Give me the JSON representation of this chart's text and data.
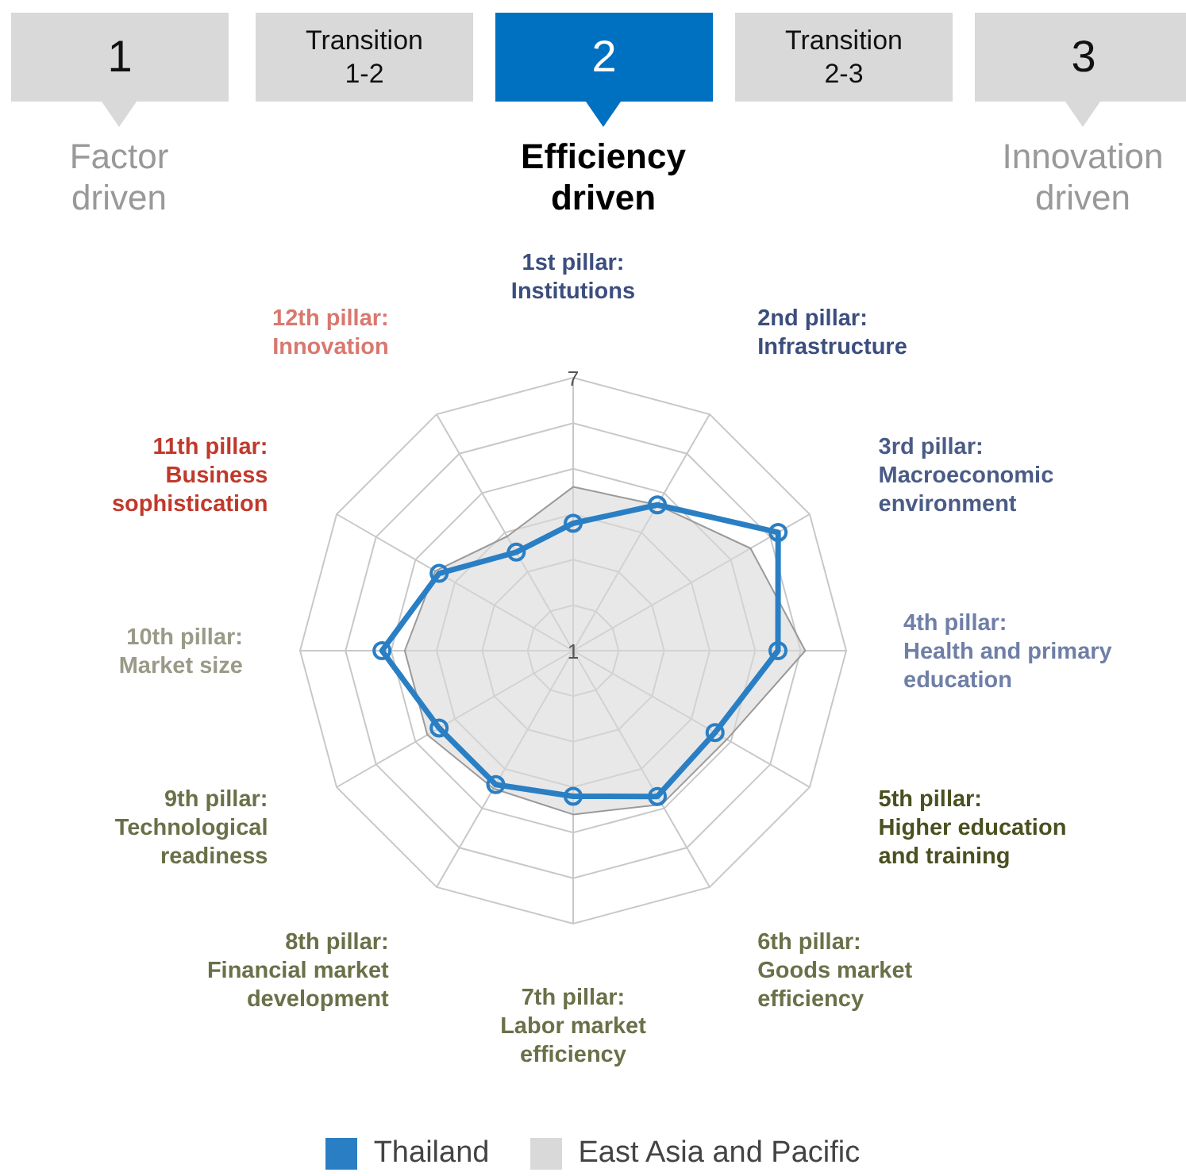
{
  "chart_data": {
    "type": "radar",
    "categories": [
      "1st pillar:\nInstitutions",
      "2nd pillar:\nInfrastructure",
      "3rd pillar:\nMacroeconomic\nenvironment",
      "4th pillar:\nHealth and primary\neducation",
      "5th pillar:\nHigher education\nand training",
      "6th pillar:\nGoods market\nefficiency",
      "7th pillar:\nLabor market\nefficiency",
      "8th pillar:\nFinancial market\ndevelopment",
      "9th pillar:\nTechnological\nreadiness",
      "10th pillar:\nMarket size",
      "11th pillar:\nBusiness\nsophistication",
      "12th pillar:\nInnovation"
    ],
    "series": [
      {
        "name": "East Asia and Pacific",
        "type": "area",
        "color": "#d9d9d9",
        "values": [
          4.6,
          4.7,
          5.5,
          6.1,
          4.9,
          4.9,
          4.6,
          4.5,
          4.7,
          4.7,
          4.5,
          3.9
        ]
      },
      {
        "name": "Thailand",
        "color": "#2a7fc4",
        "marker": "circle",
        "values": [
          3.8,
          4.7,
          6.2,
          5.5,
          4.6,
          4.7,
          4.2,
          4.4,
          4.4,
          5.2,
          4.4,
          3.5
        ]
      }
    ],
    "ylim": [
      1,
      7
    ],
    "yticks": [
      1,
      7
    ],
    "grid": true,
    "legend": "bottom",
    "annotations": [
      "1",
      "Factor\ndriven",
      "Transition\n1-2",
      "2",
      "Efficiency\ndriven",
      "Transition\n2-3",
      "3",
      "Innovation\ndriven"
    ]
  }
}
